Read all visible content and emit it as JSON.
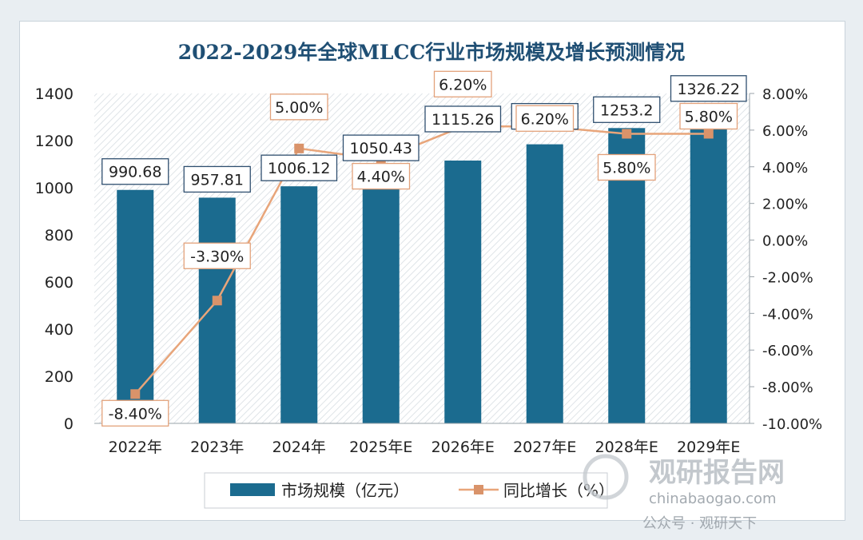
{
  "chart_data": {
    "type": "bar",
    "title": "2022-2029年全球MLCC行业市场规模及增长预测情况",
    "categories": [
      "2022年",
      "2023年",
      "2024年",
      "2025年E",
      "2026年E",
      "2027年E",
      "2028年E",
      "2029年E"
    ],
    "series": [
      {
        "name": "市场规模（亿元）",
        "type": "bar",
        "axis": "left",
        "values": [
          990.68,
          957.81,
          1006.12,
          1050.43,
          1115.26,
          1184.3,
          1253.2,
          1326.22
        ],
        "labels": [
          "990.68",
          "957.81",
          "1006.12",
          "1050.43",
          "1115.26",
          "1184.3",
          "1253.2",
          "1326.22"
        ],
        "color": "#1b6b8f"
      },
      {
        "name": "同比增长（%）",
        "type": "line",
        "axis": "right",
        "values": [
          -8.4,
          -3.3,
          5.0,
          4.4,
          6.2,
          6.2,
          5.8,
          5.8
        ],
        "labels": [
          "-8.40%",
          "-3.30%",
          "5.00%",
          "4.40%",
          "6.20%",
          "6.20%",
          "5.80%",
          "5.80%"
        ],
        "color": "#e8a57a"
      }
    ],
    "y_left": {
      "range": [
        0,
        1400
      ],
      "ticks": [
        "0",
        "200",
        "400",
        "600",
        "800",
        "1000",
        "1200",
        "1400"
      ]
    },
    "y_right": {
      "range": [
        -10,
        8
      ],
      "ticks": [
        "-10.00%",
        "-8.00%",
        "-6.00%",
        "-4.00%",
        "-2.00%",
        "0.00%",
        "2.00%",
        "4.00%",
        "6.00%",
        "8.00%"
      ]
    },
    "legend_position": "bottom",
    "grid": false
  },
  "watermark": {
    "brand": "观研报告网",
    "url": "chinabaogao.com",
    "account": "公众号 · 观研天下"
  }
}
